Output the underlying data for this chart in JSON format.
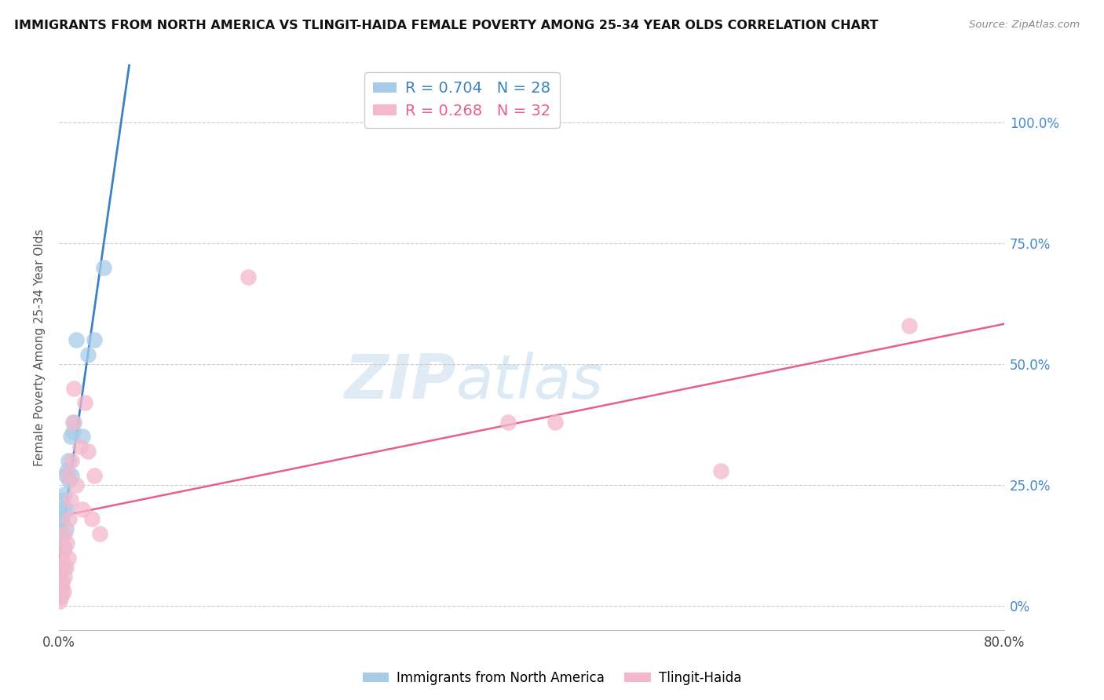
{
  "title": "IMMIGRANTS FROM NORTH AMERICA VS TLINGIT-HAIDA FEMALE POVERTY AMONG 25-34 YEAR OLDS CORRELATION CHART",
  "source": "Source: ZipAtlas.com",
  "ylabel": "Female Poverty Among 25-34 Year Olds",
  "blue_label": "Immigrants from North America",
  "pink_label": "Tlingit-Haida",
  "blue_R": 0.704,
  "blue_N": 28,
  "pink_R": 0.268,
  "pink_N": 32,
  "blue_color": "#a8cce8",
  "pink_color": "#f4b8cc",
  "blue_line_color": "#3b82c4",
  "pink_line_color": "#e8608a",
  "watermark_zip": "ZIP",
  "watermark_atlas": "atlas",
  "xmin": 0.0,
  "xmax": 0.8,
  "ymin": -0.05,
  "ymax": 1.12,
  "yticks": [
    0.0,
    0.25,
    0.5,
    0.75,
    1.0
  ],
  "ytick_labels": [
    "0%",
    "25.0%",
    "50.0%",
    "75.0%",
    "100.0%"
  ],
  "xticks": [
    0.0,
    0.2,
    0.4,
    0.6,
    0.8
  ],
  "xtick_labels": [
    "0.0%",
    "",
    "",
    "",
    "80.0%"
  ],
  "blue_scatter_x": [
    0.001,
    0.001,
    0.001,
    0.002,
    0.002,
    0.002,
    0.003,
    0.003,
    0.003,
    0.004,
    0.004,
    0.005,
    0.005,
    0.006,
    0.006,
    0.007,
    0.007,
    0.008,
    0.009,
    0.01,
    0.011,
    0.012,
    0.013,
    0.015,
    0.02,
    0.025,
    0.03,
    0.038
  ],
  "blue_scatter_y": [
    0.02,
    0.04,
    0.06,
    0.03,
    0.15,
    0.18,
    0.05,
    0.18,
    0.22,
    0.08,
    0.2,
    0.12,
    0.23,
    0.16,
    0.27,
    0.2,
    0.28,
    0.3,
    0.26,
    0.35,
    0.27,
    0.36,
    0.38,
    0.55,
    0.35,
    0.52,
    0.55,
    0.7
  ],
  "pink_scatter_x": [
    0.001,
    0.001,
    0.002,
    0.002,
    0.003,
    0.003,
    0.004,
    0.004,
    0.005,
    0.005,
    0.006,
    0.007,
    0.008,
    0.008,
    0.009,
    0.01,
    0.011,
    0.012,
    0.013,
    0.015,
    0.018,
    0.02,
    0.022,
    0.025,
    0.028,
    0.03,
    0.035,
    0.16,
    0.38,
    0.42,
    0.56,
    0.72
  ],
  "pink_scatter_y": [
    0.01,
    0.05,
    0.02,
    0.08,
    0.04,
    0.1,
    0.03,
    0.12,
    0.06,
    0.15,
    0.08,
    0.13,
    0.1,
    0.27,
    0.18,
    0.22,
    0.3,
    0.38,
    0.45,
    0.25,
    0.33,
    0.2,
    0.42,
    0.32,
    0.18,
    0.27,
    0.15,
    0.68,
    0.38,
    0.38,
    0.28,
    0.58
  ]
}
